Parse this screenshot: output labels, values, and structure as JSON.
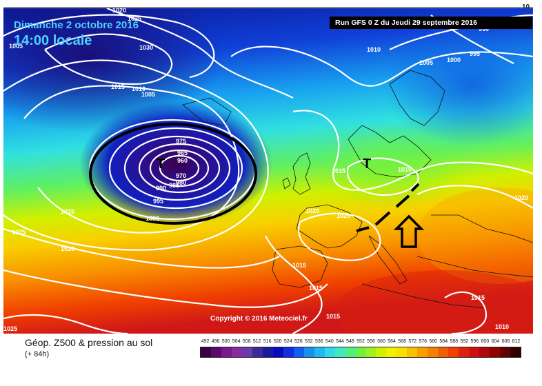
{
  "header": {
    "date": "Dimanche 2 octobre 2016",
    "time": "14:00 locale",
    "run": "Run GFS 0 Z du Jeudi 29 septembre 2016"
  },
  "copyright": "Copyright © 2016 Meteociel.fr",
  "legend": {
    "title": "Géop. Z500 & pression au sol",
    "subtitle": "(+ 84h)",
    "values": [
      "492",
      "496",
      "500",
      "504",
      "508",
      "512",
      "516",
      "520",
      "524",
      "528",
      "532",
      "536",
      "540",
      "544",
      "548",
      "552",
      "556",
      "560",
      "564",
      "568",
      "572",
      "576",
      "580",
      "584",
      "588",
      "592",
      "596",
      "600",
      "604",
      "608",
      "612"
    ],
    "colors": [
      "#3a0040",
      "#5a0a6a",
      "#7a1a8a",
      "#8a2aa0",
      "#6a3aa8",
      "#3a2a9a",
      "#1a1aa0",
      "#0a0ac0",
      "#1030e0",
      "#1060f0",
      "#1890f0",
      "#20b8f0",
      "#30d8e8",
      "#40e8c0",
      "#50f080",
      "#70f040",
      "#a0f020",
      "#d0f000",
      "#f0f000",
      "#f8e000",
      "#f8c000",
      "#f8a000",
      "#f88000",
      "#f06000",
      "#f04000",
      "#e02010",
      "#d01010",
      "#b00808",
      "#900000",
      "#600000",
      "#300000"
    ]
  },
  "isobars": {
    "labels": [
      "1020",
      "1025",
      "1030",
      "1005",
      "1015",
      "1010",
      "1005",
      "975",
      "965",
      "960",
      "970",
      "980",
      "985",
      "990",
      "995",
      "1000",
      "1015",
      "1025",
      "1020",
      "1010",
      "995",
      "1005",
      "1000",
      "1015",
      "1010",
      "1020",
      "1020",
      "1020",
      "1015",
      "1015",
      "1015",
      "1015",
      "1010",
      "990",
      "10"
    ]
  },
  "lows": [
    "T",
    "T"
  ],
  "colors": {
    "date_text": "#4fd0ff",
    "banner_bg": "#000000",
    "isobar": "#ffffff",
    "ellipse": "#000000"
  },
  "icons": [
    "outline-arrow-up-icon",
    "dashed-trough-line-icon",
    "low-pressure-ellipse-icon"
  ]
}
